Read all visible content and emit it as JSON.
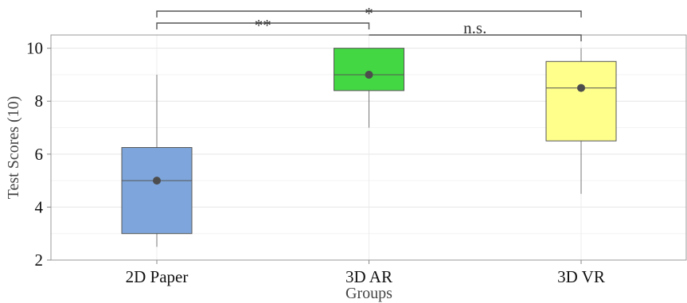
{
  "chart_data": {
    "type": "box",
    "xlabel": "Groups",
    "ylabel": "Test Scores (10)",
    "ylim": [
      2,
      10.5
    ],
    "y_ticks": [
      2,
      4,
      6,
      8,
      10
    ],
    "grid": true,
    "categories": [
      "2D Paper",
      "3D AR",
      "3D VR"
    ],
    "boxes": [
      {
        "category": "2D Paper",
        "color": "#7ea6dc",
        "whisker_low": 2.5,
        "q1": 3.0,
        "median": 5.0,
        "q3": 6.25,
        "whisker_high": 9.0,
        "mean": 5.0
      },
      {
        "category": "3D AR",
        "color": "#43d743",
        "whisker_low": 7.0,
        "q1": 8.4,
        "median": 9.0,
        "q3": 10.0,
        "whisker_high": 10.0,
        "mean": 9.0
      },
      {
        "category": "3D VR",
        "color": "#ffff8c",
        "whisker_low": 4.5,
        "q1": 6.5,
        "median": 8.5,
        "q3": 9.5,
        "whisker_high": 10.0,
        "mean": 8.5
      }
    ],
    "significance": [
      {
        "from": "2D Paper",
        "to": "3D AR",
        "label": "**"
      },
      {
        "from": "2D Paper",
        "to": "3D VR",
        "label": "*"
      },
      {
        "from": "3D AR",
        "to": "3D VR",
        "label": "n.s."
      }
    ]
  }
}
